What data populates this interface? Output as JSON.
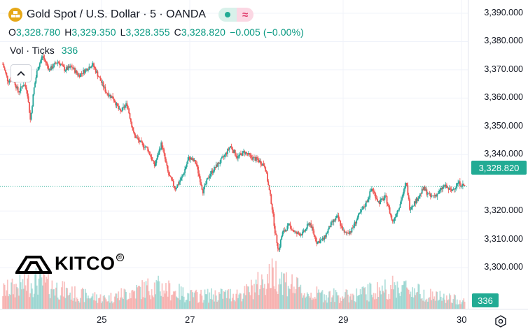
{
  "header": {
    "title": "Gold Spot / U.S. Dollar · 5 · OANDA",
    "ohlc": {
      "o_label": "O",
      "o_value": "3,328.780",
      "h_label": "H",
      "h_value": "3,329.350",
      "l_label": "L",
      "l_value": "3,328.355",
      "c_label": "C",
      "c_value": "3,328.820",
      "change": "−0.005 (−0.00%)"
    },
    "volume_label": "Vol · Ticks",
    "volume_value": "336",
    "symbol_icon": "gold-bars-icon",
    "status_icons": [
      "market-open-dot-icon",
      "wave-icon"
    ]
  },
  "logo": {
    "text": "KITCO",
    "reg": "®"
  },
  "colors": {
    "up": "#26a69a",
    "down": "#ef5350",
    "accent": "#22ab94",
    "text": "#131722"
  },
  "price_axis": {
    "ticks": [
      "3,390.000",
      "3,380.000",
      "3,370.000",
      "3,360.000",
      "3,350.000",
      "3,340.000",
      "3,320.000",
      "3,310.000",
      "3,300.000"
    ],
    "tick_values": [
      3390,
      3380,
      3370,
      3360,
      3350,
      3340,
      3320,
      3310,
      3300
    ],
    "current_price": "3,328.820",
    "current_value": 3328.82
  },
  "volume_axis": {
    "current": "336"
  },
  "time_axis": {
    "ticks": [
      "25",
      "27",
      "29",
      "30"
    ]
  },
  "chart_data": {
    "type": "candlestick",
    "symbol": "XAU/USD",
    "interval": "5",
    "ylim": [
      3294,
      3392
    ],
    "x_ticks": [
      "25",
      "27",
      "29",
      "30"
    ],
    "price_path": [
      {
        "t": 0,
        "p": 3372
      },
      {
        "t": 3,
        "p": 3366
      },
      {
        "t": 6,
        "p": 3367
      },
      {
        "t": 9,
        "p": 3362
      },
      {
        "t": 12,
        "p": 3365
      },
      {
        "t": 14,
        "p": 3363
      },
      {
        "t": 16,
        "p": 3352
      },
      {
        "t": 18,
        "p": 3363
      },
      {
        "t": 20,
        "p": 3370
      },
      {
        "t": 23,
        "p": 3375
      },
      {
        "t": 27,
        "p": 3370
      },
      {
        "t": 32,
        "p": 3373
      },
      {
        "t": 36,
        "p": 3370
      },
      {
        "t": 40,
        "p": 3371
      },
      {
        "t": 44,
        "p": 3368
      },
      {
        "t": 48,
        "p": 3370
      },
      {
        "t": 52,
        "p": 3372
      },
      {
        "t": 56,
        "p": 3367
      },
      {
        "t": 60,
        "p": 3362
      },
      {
        "t": 64,
        "p": 3360
      },
      {
        "t": 68,
        "p": 3355
      },
      {
        "t": 72,
        "p": 3358
      },
      {
        "t": 76,
        "p": 3347
      },
      {
        "t": 80,
        "p": 3344
      },
      {
        "t": 84,
        "p": 3342
      },
      {
        "t": 88,
        "p": 3336
      },
      {
        "t": 92,
        "p": 3344
      },
      {
        "t": 96,
        "p": 3333
      },
      {
        "t": 100,
        "p": 3328
      },
      {
        "t": 104,
        "p": 3332
      },
      {
        "t": 108,
        "p": 3339
      },
      {
        "t": 112,
        "p": 3337
      },
      {
        "t": 116,
        "p": 3327
      },
      {
        "t": 120,
        "p": 3333
      },
      {
        "t": 124,
        "p": 3336
      },
      {
        "t": 128,
        "p": 3339
      },
      {
        "t": 132,
        "p": 3343
      },
      {
        "t": 136,
        "p": 3339
      },
      {
        "t": 140,
        "p": 3341
      },
      {
        "t": 144,
        "p": 3339
      },
      {
        "t": 148,
        "p": 3338
      },
      {
        "t": 152,
        "p": 3336
      },
      {
        "t": 154,
        "p": 3329
      },
      {
        "t": 156,
        "p": 3322
      },
      {
        "t": 158,
        "p": 3312
      },
      {
        "t": 160,
        "p": 3306
      },
      {
        "t": 162,
        "p": 3312
      },
      {
        "t": 166,
        "p": 3315
      },
      {
        "t": 170,
        "p": 3312
      },
      {
        "t": 174,
        "p": 3312
      },
      {
        "t": 178,
        "p": 3316
      },
      {
        "t": 182,
        "p": 3309
      },
      {
        "t": 186,
        "p": 3310
      },
      {
        "t": 190,
        "p": 3315
      },
      {
        "t": 194,
        "p": 3318
      },
      {
        "t": 198,
        "p": 3312
      },
      {
        "t": 202,
        "p": 3313
      },
      {
        "t": 206,
        "p": 3318
      },
      {
        "t": 210,
        "p": 3322
      },
      {
        "t": 214,
        "p": 3328
      },
      {
        "t": 218,
        "p": 3323
      },
      {
        "t": 222,
        "p": 3325
      },
      {
        "t": 226,
        "p": 3316
      },
      {
        "t": 230,
        "p": 3322
      },
      {
        "t": 234,
        "p": 3330
      },
      {
        "t": 236,
        "p": 3321
      },
      {
        "t": 240,
        "p": 3324
      },
      {
        "t": 244,
        "p": 3328
      },
      {
        "t": 248,
        "p": 3325
      },
      {
        "t": 252,
        "p": 3326
      },
      {
        "t": 256,
        "p": 3329
      },
      {
        "t": 260,
        "p": 3327
      },
      {
        "t": 264,
        "p": 3330
      },
      {
        "t": 268,
        "p": 3328.82
      }
    ],
    "volume": {
      "current": 336,
      "profile": [
        {
          "t": 0,
          "v": 0.35
        },
        {
          "t": 20,
          "v": 0.55
        },
        {
          "t": 40,
          "v": 0.3
        },
        {
          "t": 60,
          "v": 0.2
        },
        {
          "t": 88,
          "v": 0.45
        },
        {
          "t": 110,
          "v": 0.25
        },
        {
          "t": 140,
          "v": 0.3
        },
        {
          "t": 158,
          "v": 0.7
        },
        {
          "t": 175,
          "v": 0.3
        },
        {
          "t": 200,
          "v": 0.25
        },
        {
          "t": 230,
          "v": 0.45
        },
        {
          "t": 250,
          "v": 0.25
        },
        {
          "t": 268,
          "v": 0.15
        }
      ]
    }
  }
}
